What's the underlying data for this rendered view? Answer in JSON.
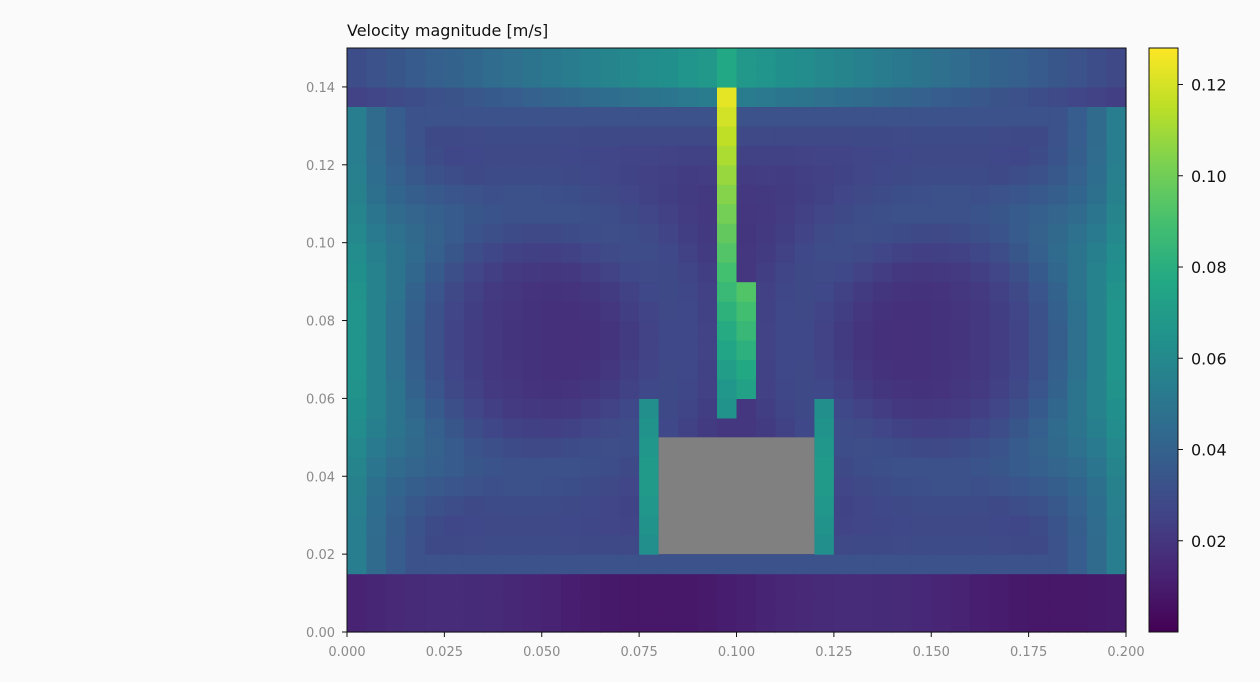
{
  "chart_data": {
    "type": "heatmap",
    "title": "Velocity magnitude [m/s]",
    "xlabel": "",
    "ylabel": "",
    "xlim": [
      0.0,
      0.2
    ],
    "ylim": [
      0.0,
      0.15
    ],
    "grid": false,
    "colormap": "viridis",
    "colorbar": {
      "range": [
        0.0,
        0.128
      ],
      "ticks": [
        0.02,
        0.04,
        0.06,
        0.08,
        0.1,
        0.12
      ],
      "tick_labels": [
        "0.02",
        "0.04",
        "0.06",
        "0.08",
        "0.10",
        "0.12"
      ]
    },
    "xticks": [
      0.0,
      0.025,
      0.05,
      0.075,
      0.1,
      0.125,
      0.15,
      0.175,
      0.2
    ],
    "xtick_labels": [
      "0.000",
      "0.025",
      "0.050",
      "0.075",
      "0.100",
      "0.125",
      "0.150",
      "0.175",
      "0.200"
    ],
    "yticks": [
      0.0,
      0.02,
      0.04,
      0.06,
      0.08,
      0.1,
      0.12,
      0.14
    ],
    "ytick_labels": [
      "0.00",
      "0.02",
      "0.04",
      "0.06",
      "0.08",
      "0.10",
      "0.12",
      "0.14"
    ],
    "grid_cells": {
      "nx": 40,
      "ny": 30,
      "dx": 0.005,
      "dy": 0.005
    },
    "obstacle": {
      "x": [
        0.08,
        0.12
      ],
      "y": [
        0.02,
        0.05
      ],
      "color": "#808080"
    },
    "flow_features": {
      "top_jet": {
        "x": [
          0.095,
          0.1
        ],
        "y": [
          0.05,
          0.15
        ],
        "peak": 0.128
      },
      "lid_flow": {
        "y": [
          0.14,
          0.15
        ],
        "value": 0.06
      },
      "side_gaps": {
        "x": [
          [
            0.075,
            0.08
          ],
          [
            0.12,
            0.125
          ]
        ],
        "y": [
          0.02,
          0.06
        ],
        "value": 0.07
      }
    }
  }
}
